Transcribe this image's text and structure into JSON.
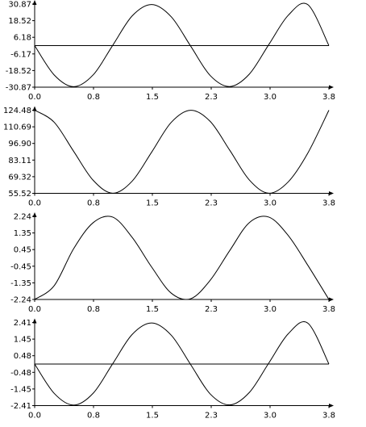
{
  "chart_data": [
    {
      "type": "line",
      "title": "",
      "xlabel": "",
      "ylabel": "",
      "xlim": [
        0,
        3.77
      ],
      "ylim": [
        -30.87,
        30.87
      ],
      "xticks": [
        "0.0",
        "0.8",
        "1.5",
        "2.3",
        "3.0",
        "3.8"
      ],
      "yticks": [
        "30.87",
        "18.52",
        "6.18",
        "-6.17",
        "-18.52",
        "-30.87"
      ],
      "zero_line": 0,
      "series": [
        {
          "color": "#000000",
          "x": [
            0,
            0.25,
            0.5,
            0.75,
            1.0,
            1.25,
            1.5,
            1.75,
            2.0,
            2.25,
            2.5,
            2.75,
            3.0,
            3.25,
            3.5,
            3.77
          ],
          "values": [
            0,
            -21.8,
            -30.5,
            -21.7,
            0.2,
            22.1,
            30.5,
            21.4,
            -0.5,
            -22.3,
            -30.4,
            -21.2,
            0.8,
            22.6,
            30.4,
            0
          ]
        }
      ]
    },
    {
      "type": "line",
      "title": "",
      "xlabel": "",
      "ylabel": "",
      "xlim": [
        0,
        3.77
      ],
      "ylim": [
        55.52,
        124.48
      ],
      "xticks": [
        "0.0",
        "0.8",
        "1.5",
        "2.3",
        "3.0",
        "3.8"
      ],
      "yticks": [
        "124.48",
        "110.69",
        "96.90",
        "83.11",
        "69.32",
        "55.52"
      ],
      "zero_line": null,
      "series": [
        {
          "color": "#000000",
          "x": [
            0,
            0.25,
            0.5,
            0.75,
            1.0,
            1.25,
            1.5,
            1.75,
            2.0,
            2.25,
            2.5,
            2.75,
            3.0,
            3.25,
            3.5,
            3.77
          ],
          "values": [
            124.48,
            114.5,
            90.3,
            66.3,
            55.6,
            65.7,
            89.8,
            114.4,
            124.4,
            115.1,
            91.2,
            66.6,
            55.6,
            65.1,
            88.9,
            124.48
          ]
        }
      ]
    },
    {
      "type": "line",
      "title": "",
      "xlabel": "",
      "ylabel": "",
      "xlim": [
        0,
        3.77
      ],
      "ylim": [
        -2.24,
        2.24
      ],
      "xticks": [
        "0.0",
        "0.8",
        "1.5",
        "2.3",
        "3.0",
        "3.8"
      ],
      "yticks": [
        "2.24",
        "1.35",
        "0.45",
        "-0.45",
        "-1.35",
        "-2.24"
      ],
      "zero_line": null,
      "series": [
        {
          "color": "#000000",
          "x": [
            0,
            0.25,
            0.5,
            0.75,
            1.0,
            1.25,
            1.5,
            1.75,
            2.0,
            2.25,
            2.5,
            2.75,
            3.0,
            3.25,
            3.5,
            3.77
          ],
          "values": [
            -2.24,
            -1.5,
            0.5,
            1.9,
            2.2,
            1.1,
            -0.5,
            -1.9,
            -2.2,
            -1.2,
            0.4,
            1.9,
            2.2,
            1.2,
            -0.4,
            -2.24
          ]
        }
      ]
    },
    {
      "type": "line",
      "title": "",
      "xlabel": "",
      "ylabel": "",
      "xlim": [
        0,
        3.77
      ],
      "ylim": [
        -2.41,
        2.41
      ],
      "xticks": [
        "0.0",
        "0.8",
        "1.5",
        "2.3",
        "3.0",
        "3.8"
      ],
      "yticks": [
        "2.41",
        "1.45",
        "0.48",
        "-0.48",
        "-1.45",
        "-2.41"
      ],
      "zero_line": 0,
      "series": [
        {
          "color": "#000000",
          "x": [
            0,
            0.25,
            0.5,
            0.75,
            1.0,
            1.25,
            1.5,
            1.75,
            2.0,
            2.25,
            2.5,
            2.75,
            3.0,
            3.25,
            3.5,
            3.77
          ],
          "values": [
            0,
            -1.7,
            -2.38,
            -1.69,
            0.02,
            1.72,
            2.38,
            1.67,
            -0.04,
            -1.74,
            -2.37,
            -1.65,
            0.06,
            1.76,
            2.37,
            0
          ]
        }
      ]
    }
  ]
}
